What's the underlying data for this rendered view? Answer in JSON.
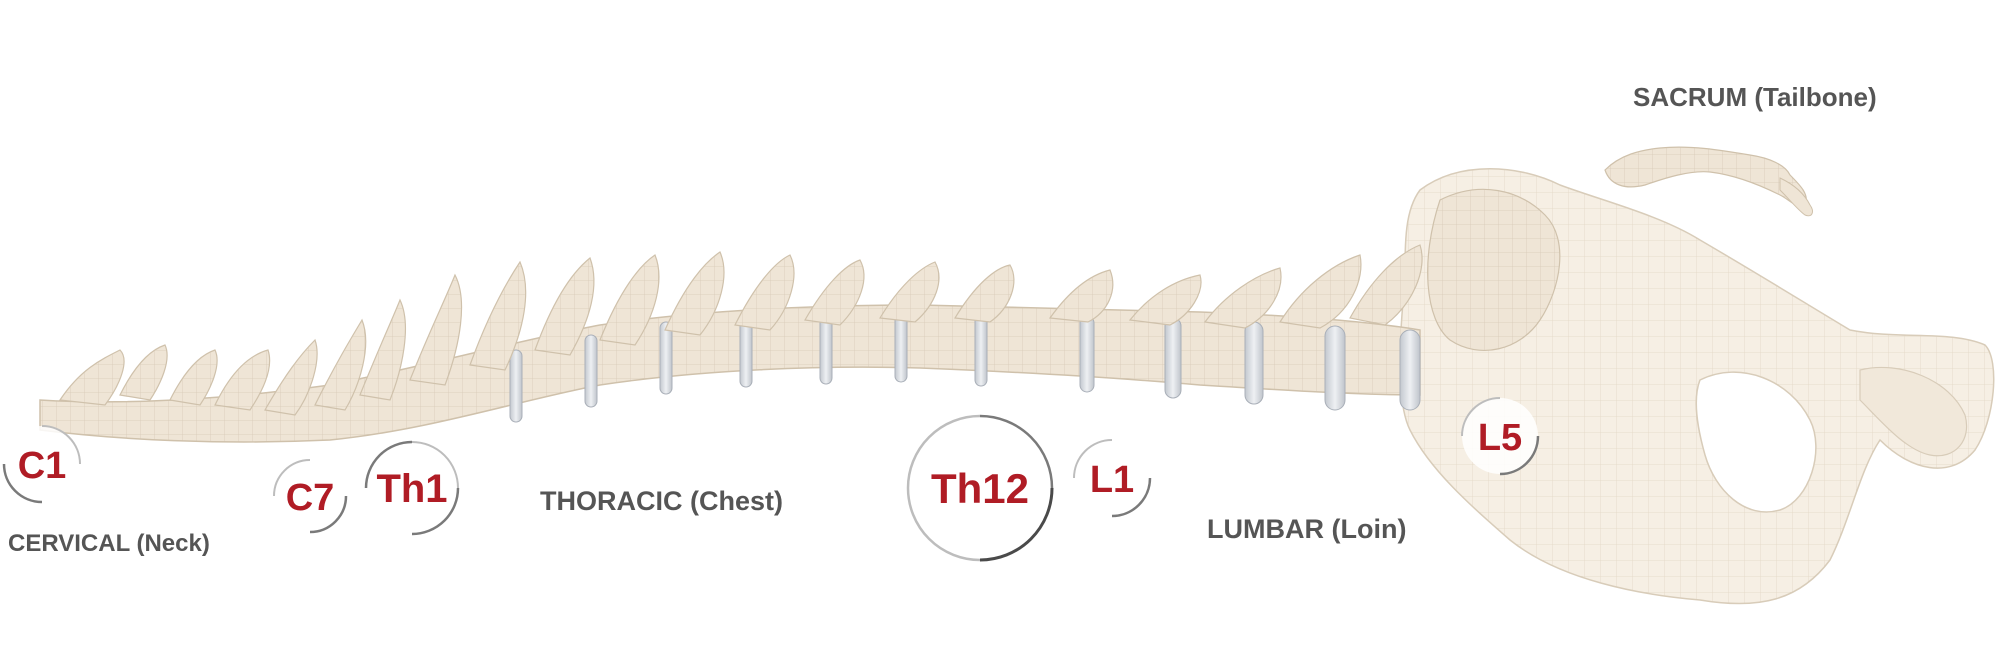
{
  "regions": {
    "cervical": "CERVICAL (Neck)",
    "thoracic": "THORACIC (Chest)",
    "lumbar": "LUMBAR (Loin)",
    "sacrum": "SACRUM (Tailbone)"
  },
  "markers": {
    "c1": "C1",
    "c7": "C7",
    "th1": "Th1",
    "th12": "Th12",
    "l1": "L1",
    "l5": "L5"
  },
  "colors": {
    "bone": "#efe5d6",
    "bone_shade": "#d9cbb6",
    "disc": "#d4d8de",
    "marker_text": "#b01c25",
    "label_text": "#555555"
  }
}
